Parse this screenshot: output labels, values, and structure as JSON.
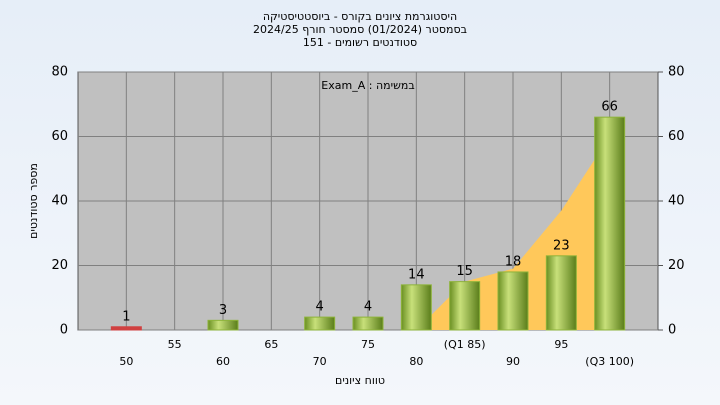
{
  "chart_data": {
    "type": "bar",
    "title": "היסטוגרמת ציונים בקורס - ביוסטטיסטיקה",
    "subtitle": "בסמסטר (01/2024) סמסטר חורף 2024/25",
    "subtitle2": "סטודנטים רשומים - 151",
    "annotation": "במשימה : Exam_A",
    "x_label": "טווח ציונים",
    "y_label": "מספר סטודנטים",
    "categories": [
      "50",
      "55",
      "60",
      "65",
      "70",
      "75",
      "80",
      "(Q1 85)",
      "90",
      "95",
      "(Q3 100)"
    ],
    "values": [
      1,
      0,
      3,
      0,
      4,
      4,
      14,
      15,
      18,
      23,
      66
    ],
    "colors": [
      "#d04040",
      "#8db33a",
      "#8db33a",
      "#8db33a",
      "#8db33a",
      "#8db33a",
      "#8db33a",
      "#8db33a",
      "#8db33a",
      "#8db33a",
      "#8db33a"
    ],
    "area": {
      "values": [
        null,
        null,
        null,
        null,
        null,
        null,
        0,
        15,
        19,
        37,
        60
      ],
      "color": "#ffc85a"
    },
    "ylim": [
      0,
      80
    ],
    "yticks": [
      0,
      20,
      40,
      60,
      80
    ],
    "y2lim": [
      0,
      80
    ],
    "y2ticks": [
      0,
      20,
      40,
      60,
      80
    ],
    "grid": true
  }
}
